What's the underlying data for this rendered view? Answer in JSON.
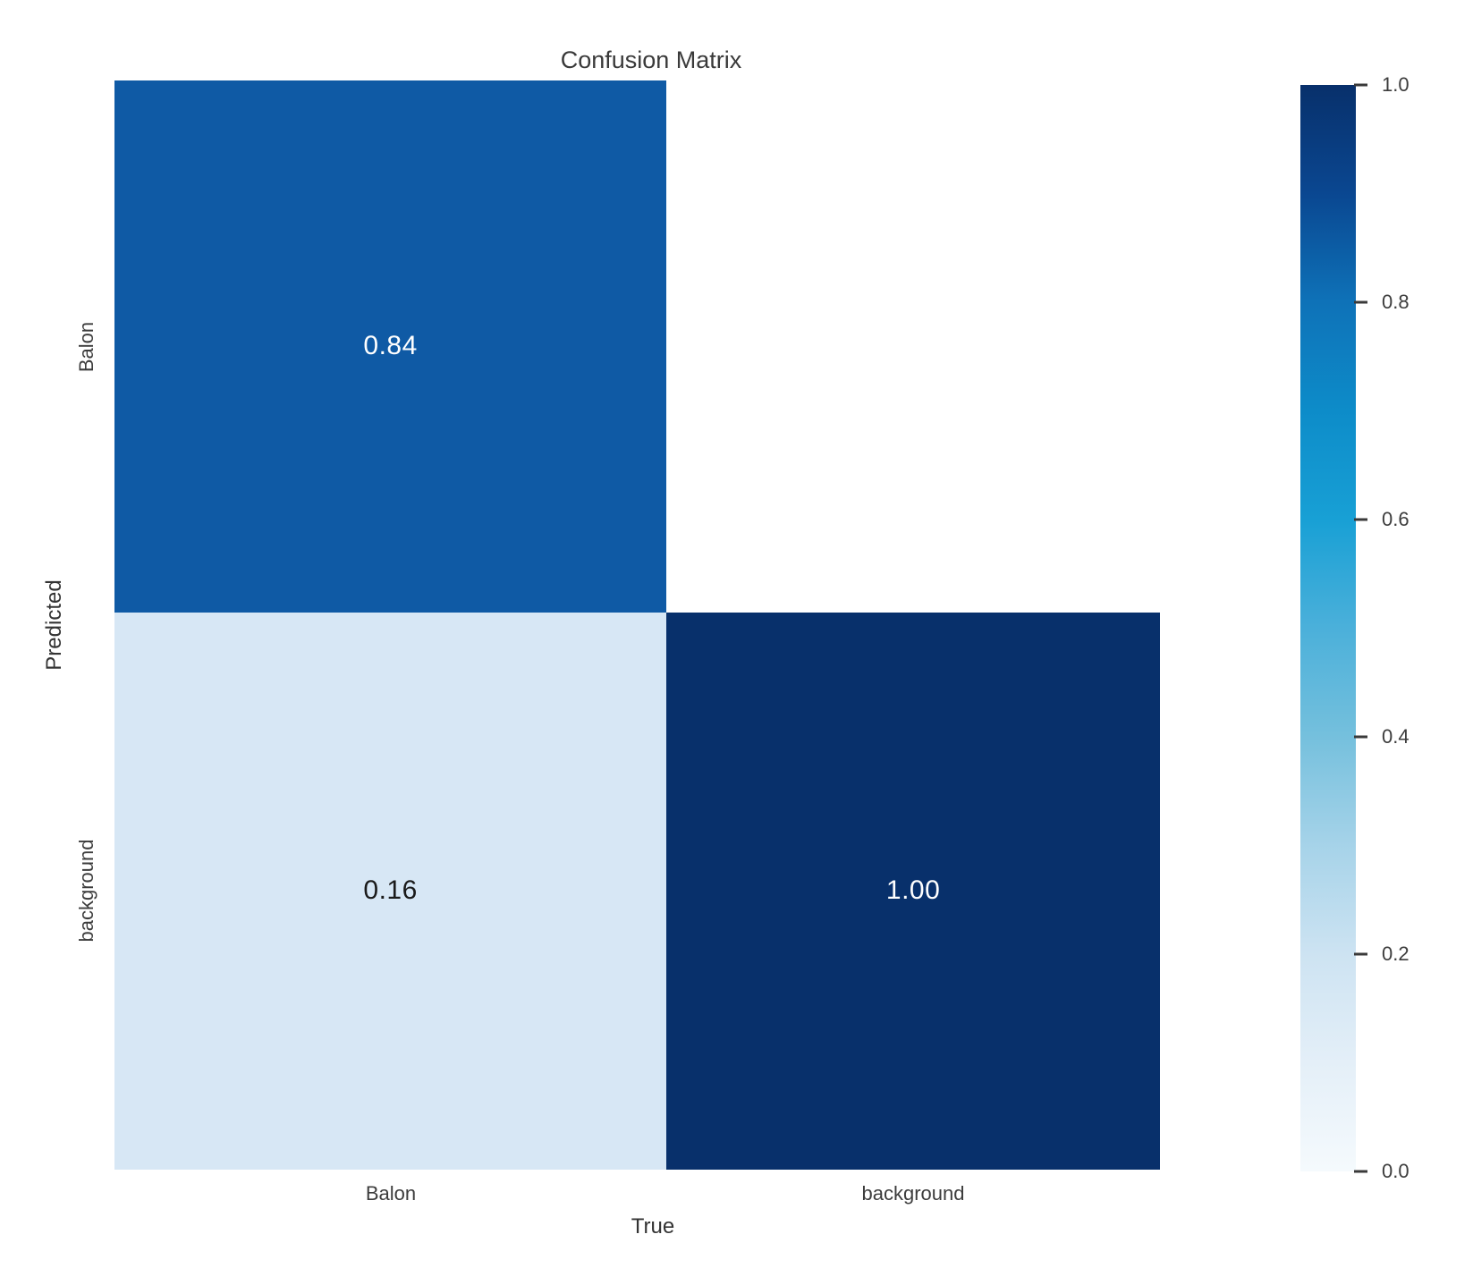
{
  "chart_data": {
    "type": "heatmap",
    "title": "Confusion Matrix",
    "xlabel": "True",
    "ylabel": "Predicted",
    "x_categories": [
      "Balon",
      "background"
    ],
    "y_categories": [
      "Balon",
      "background"
    ],
    "matrix": [
      [
        0.84,
        0.0
      ],
      [
        0.16,
        1.0
      ]
    ],
    "cell_labels": [
      [
        "0.84",
        ""
      ],
      [
        "0.16",
        "1.00"
      ]
    ],
    "cell_colors": [
      [
        "#0f5aa5",
        "#ffffff"
      ],
      [
        "#d7e7f5",
        "#08306b"
      ]
    ],
    "cell_text_colors": [
      [
        "#ffffff",
        "#1a1a1a"
      ],
      [
        "#1a1a1a",
        "#ffffff"
      ]
    ],
    "colormap": "Blues",
    "grid": false,
    "legend_position": "none",
    "colorbar": {
      "min": 0.0,
      "max": 1.0,
      "position": "right",
      "ticks": [
        "1.0",
        "0.8",
        "0.6",
        "0.4",
        "0.2",
        "0.0"
      ],
      "gradient_css": "linear-gradient(to bottom, #08306b 0%, #0a4791 10%, #0e72b8 20%, #0d8cc9 30%, #18a0d5 40%, #4bb0da 50%, #75c0dd 60%, #a6d3e9 70%, #cde3f2 80%, #e4eff8 90%, #f5fafd 100%)"
    }
  }
}
